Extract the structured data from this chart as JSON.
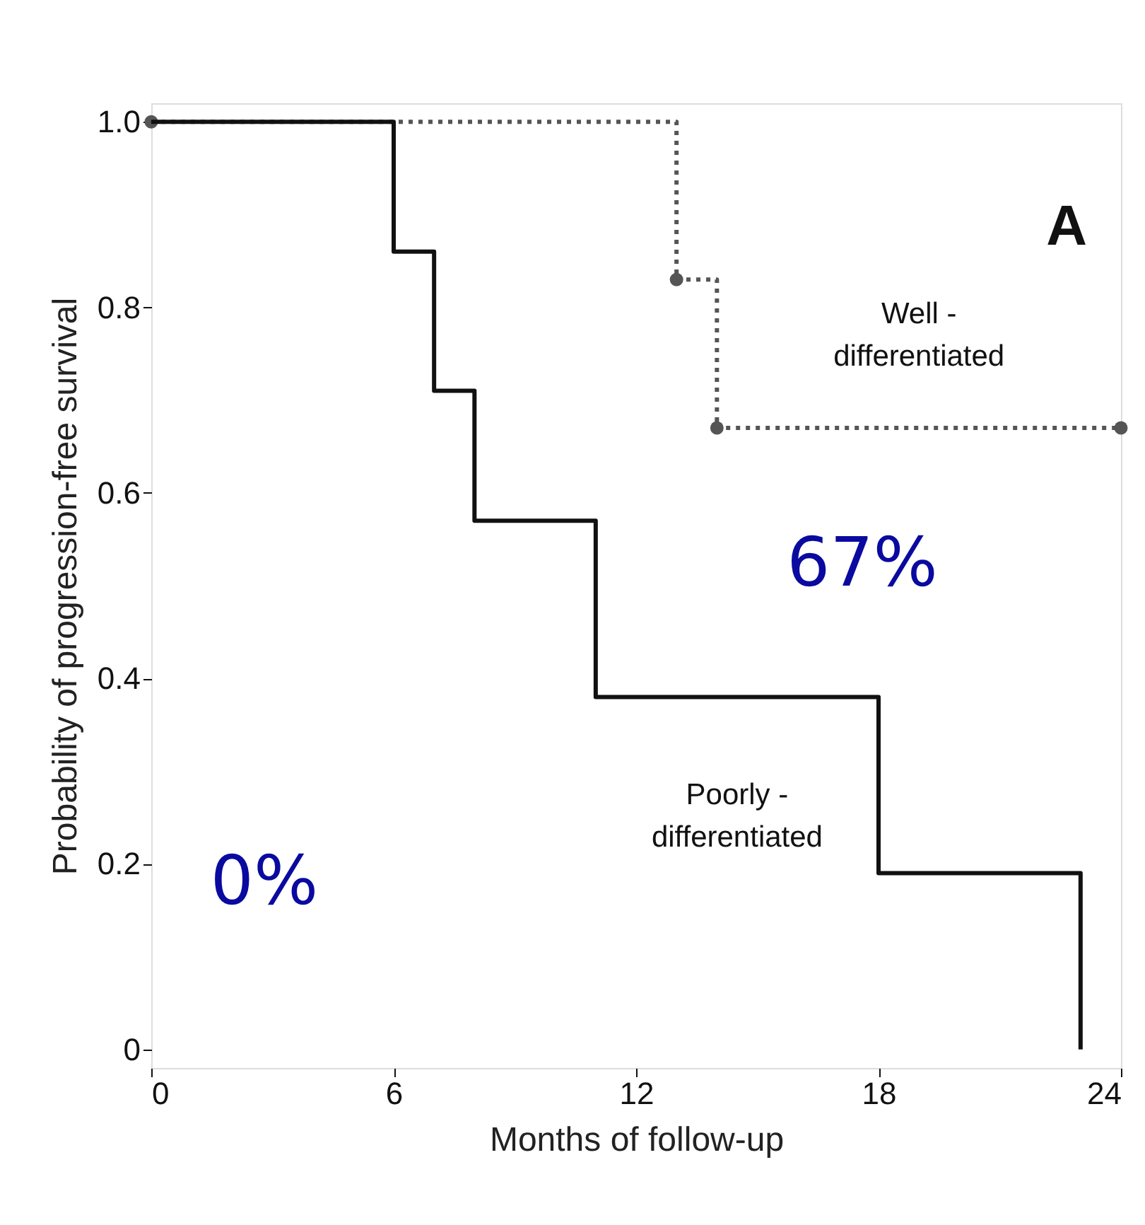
{
  "chart_data": {
    "type": "step",
    "xlabel": "Months of follow-up",
    "ylabel": "Probability of progression-free survival",
    "xlim": [
      0,
      24
    ],
    "xticks": [
      0,
      6,
      12,
      18,
      24
    ],
    "ylim": [
      -0.02,
      1.02
    ],
    "yticks": [
      0,
      {
        "value": 0.2,
        "label": "0.2"
      },
      {
        "value": 0.4,
        "label": "0.4"
      },
      {
        "value": 0.6,
        "label": "0.6"
      },
      {
        "value": 0.8,
        "label": "0.8"
      },
      {
        "value": 1,
        "label": "1.0"
      }
    ],
    "grid": false,
    "series": [
      {
        "name": "Well -\ndifferentiated",
        "color": "#555555",
        "line_style": "dotted",
        "marker": "circle",
        "x": [
          0,
          13,
          14,
          24
        ],
        "values": [
          1,
          0.83,
          0.67,
          0.67
        ]
      },
      {
        "name": "Poorly -\ndifferentiated",
        "color": "#111111",
        "line_style": "solid",
        "marker": "none",
        "x": [
          0,
          6,
          7,
          8,
          11,
          18,
          23
        ],
        "values": [
          1,
          0.86,
          0.71,
          0.57,
          0.38,
          0.19,
          0
        ]
      }
    ],
    "annotations": [
      "A",
      "67%",
      "0%"
    ]
  }
}
